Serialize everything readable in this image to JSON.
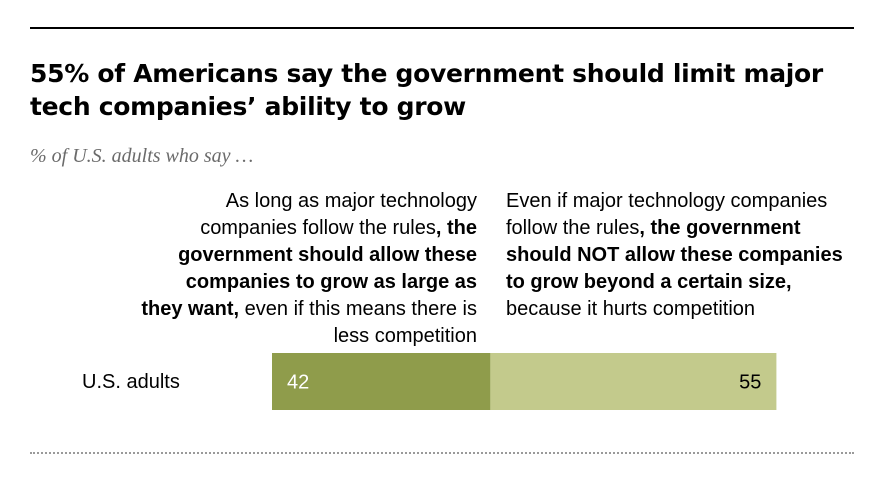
{
  "title": "55% of Americans say the government should limit major tech companies’ ability to grow",
  "subtitle": "% of U.S. adults who say …",
  "columns": {
    "left": {
      "plain_1": "As long as major technology companies follow the rules",
      "bold": ", the government should allow these companies to grow as large as they want,",
      "plain_2": " even if this means there is less competition"
    },
    "right": {
      "plain_1": "Even if major technology companies follow the rules",
      "bold": ", the government should NOT allow these companies to grow beyond a certain size,",
      "plain_2": " because it hurts competition"
    }
  },
  "chart_data": {
    "type": "bar",
    "orientation": "horizontal",
    "stacked": true,
    "categories": [
      "U.S. adults"
    ],
    "series": [
      {
        "values": [
          42
        ],
        "color": "#8f9c4b"
      },
      {
        "values": [
          55
        ],
        "color": "#c3ca8c"
      }
    ],
    "xlim": [
      0,
      100
    ],
    "grid": false,
    "data_labels": true
  }
}
